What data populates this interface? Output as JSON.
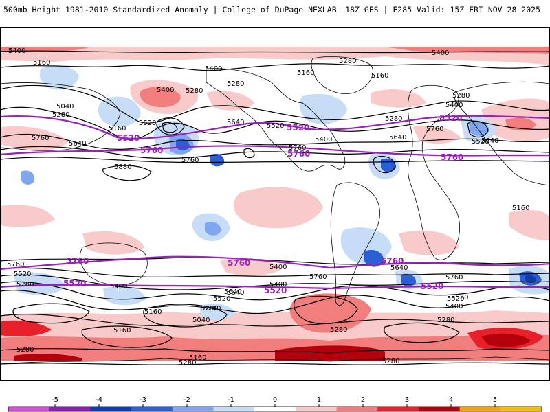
{
  "header": {
    "title_left": "500mb Height 1981-2010 Standardized Anomaly | College of DuPage NEXLAB",
    "title_right": "18Z GFS | F285 Valid: 15Z FRI NOV 28 2025"
  },
  "colors": {
    "contour": "#000000",
    "highlight_contour": "#9a1fbf",
    "coastline": "#000000",
    "background": "#ffffff"
  },
  "contour_labels": {
    "l1": "5400",
    "l2": "5400",
    "l3": "5160",
    "l4": "5400",
    "l5": "5280",
    "l6": "5160",
    "l7": "5280",
    "l8": "5160",
    "l9": "5400",
    "l10": "5280",
    "l11": "5040",
    "l12": "5280",
    "l13": "5520",
    "l14": "5280",
    "l15": "5400",
    "l16": "5160",
    "l17": "5640",
    "l18": "5520",
    "l19": "5760",
    "l20": "5640",
    "l21": "5400",
    "l22": "5760",
    "l23": "5880",
    "l24": "5640",
    "l25": "5280",
    "l26": "5640",
    "l27": "5760",
    "l28": "5520",
    "l29": "5160",
    "l30": "5760",
    "l31": "5520",
    "l32": "5280",
    "l33": "5400",
    "l34": "5760",
    "l35": "5640",
    "l36": "5520",
    "l37": "5400",
    "l38": "5280",
    "l39": "5760",
    "l40": "5640",
    "l41": "5400",
    "l42": "5520",
    "l43": "5160",
    "l44": "5040",
    "l45": "5280",
    "l46": "5160",
    "l47": "5160",
    "l48": "5280",
    "l49": "5280",
    "l50": "5280",
    "l51": "5640",
    "l52": "5760",
    "l53": "5520",
    "l54": "5400",
    "l55": "5280",
    "l56": "5280"
  },
  "highlight_labels": {
    "h1": "5520",
    "h2": "5520",
    "h3": "5520",
    "h4": "5760",
    "h5": "5760",
    "h6": "5760",
    "h7": "5760",
    "h8": "5760",
    "h9": "5760",
    "h10": "5520",
    "h11": "5520",
    "h12": "5520"
  },
  "colorbar": {
    "ticks": [
      "-5",
      "-4",
      "-3",
      "-2",
      "-1",
      "0",
      "1",
      "2",
      "3",
      "4",
      "5"
    ],
    "colors": [
      "#d14fd1",
      "#8a1fb0",
      "#0b3fb0",
      "#2a5fd6",
      "#7fa6ee",
      "#c6dcf7",
      "#ffffff",
      "#f9caca",
      "#f27d7d",
      "#e8202a",
      "#b3000c",
      "#f5a400",
      "#f6c000"
    ]
  }
}
